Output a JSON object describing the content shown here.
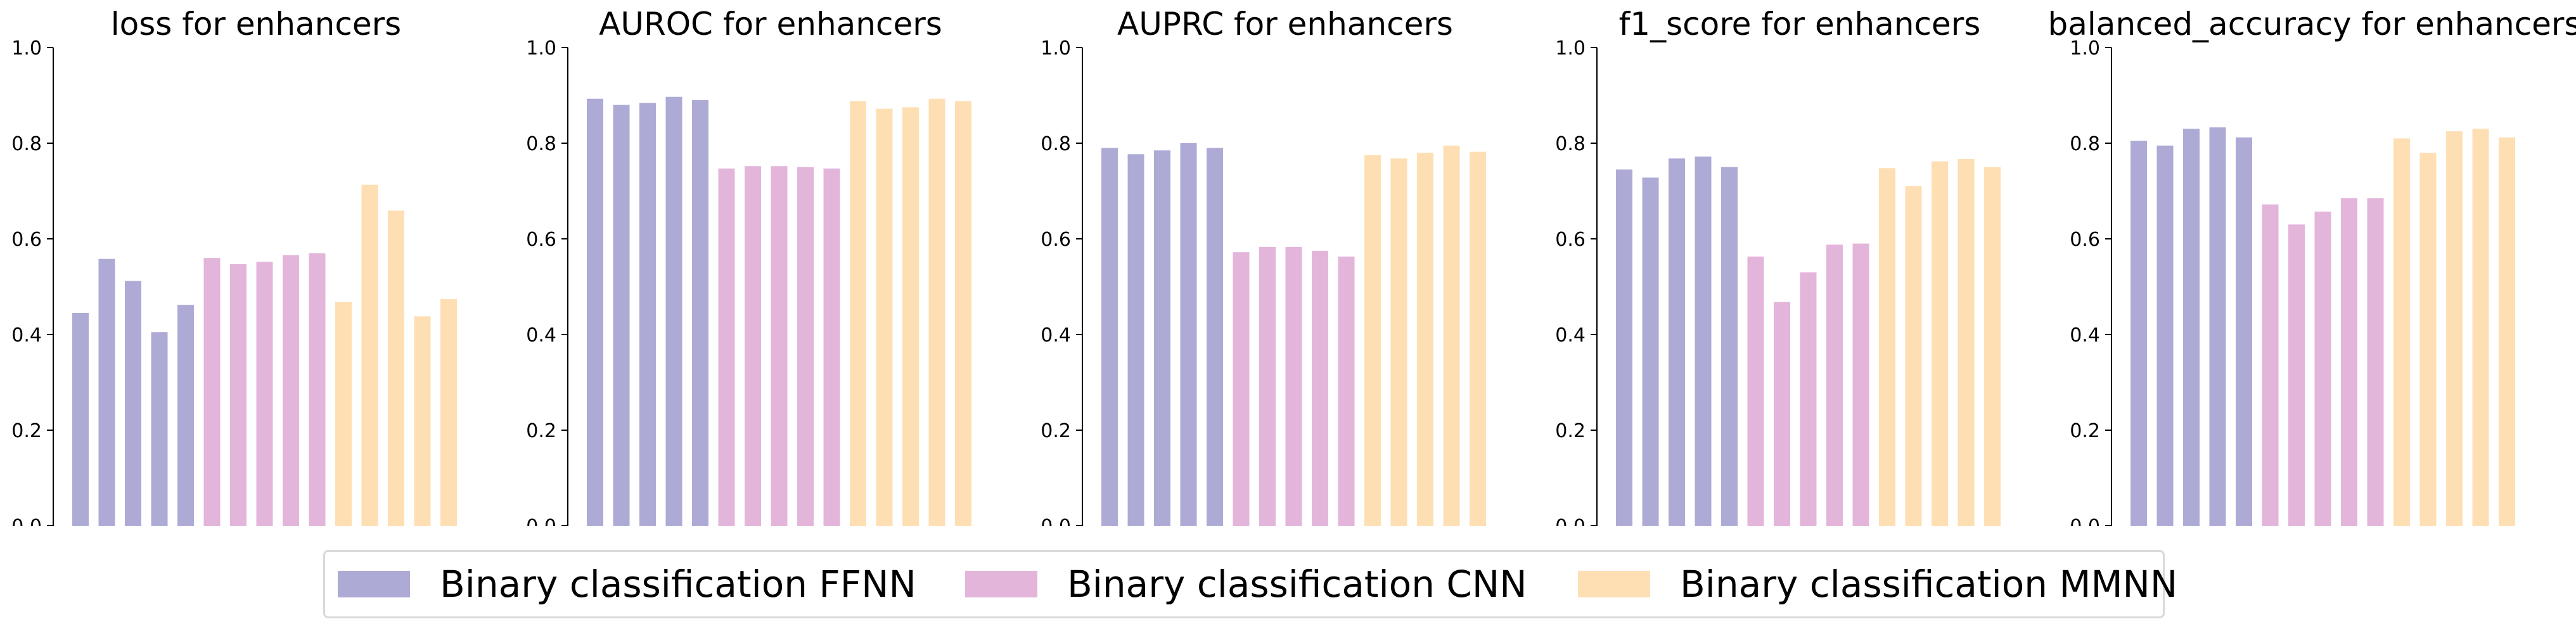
{
  "chart_data": [
    {
      "type": "bar",
      "title": "loss for enhancers",
      "ylim": [
        0,
        1
      ],
      "yticks": [
        "0.0",
        "0.2",
        "0.4",
        "0.6",
        "0.8",
        "1.0"
      ],
      "series": [
        {
          "name": "Binary classification FFNN",
          "values": [
            0.445,
            0.558,
            0.512,
            0.405,
            0.462
          ]
        },
        {
          "name": "Binary classification CNN",
          "values": [
            0.56,
            0.547,
            0.552,
            0.566,
            0.57
          ]
        },
        {
          "name": "Binary classification MMNN",
          "values": [
            0.468,
            0.713,
            0.659,
            0.438,
            0.474
          ]
        }
      ]
    },
    {
      "type": "bar",
      "title": "AUROC for enhancers",
      "ylim": [
        0,
        1
      ],
      "yticks": [
        "0.0",
        "0.2",
        "0.4",
        "0.6",
        "0.8",
        "1.0"
      ],
      "series": [
        {
          "name": "Binary classification FFNN",
          "values": [
            0.893,
            0.88,
            0.884,
            0.897,
            0.89
          ]
        },
        {
          "name": "Binary classification CNN",
          "values": [
            0.747,
            0.752,
            0.752,
            0.75,
            0.747
          ]
        },
        {
          "name": "Binary classification MMNN",
          "values": [
            0.888,
            0.872,
            0.875,
            0.893,
            0.888
          ]
        }
      ]
    },
    {
      "type": "bar",
      "title": "AUPRC for enhancers",
      "ylim": [
        0,
        1
      ],
      "yticks": [
        "0.0",
        "0.2",
        "0.4",
        "0.6",
        "0.8",
        "1.0"
      ],
      "series": [
        {
          "name": "Binary classification FFNN",
          "values": [
            0.79,
            0.777,
            0.785,
            0.8,
            0.79
          ]
        },
        {
          "name": "Binary classification CNN",
          "values": [
            0.572,
            0.583,
            0.583,
            0.575,
            0.563
          ]
        },
        {
          "name": "Binary classification MMNN",
          "values": [
            0.775,
            0.768,
            0.78,
            0.795,
            0.782
          ]
        }
      ]
    },
    {
      "type": "bar",
      "title": "f1_score for enhancers",
      "ylim": [
        0,
        1
      ],
      "yticks": [
        "0.0",
        "0.2",
        "0.4",
        "0.6",
        "0.8",
        "1.0"
      ],
      "series": [
        {
          "name": "Binary classification FFNN",
          "values": [
            0.745,
            0.728,
            0.768,
            0.772,
            0.75
          ]
        },
        {
          "name": "Binary classification CNN",
          "values": [
            0.563,
            0.468,
            0.53,
            0.588,
            0.59
          ]
        },
        {
          "name": "Binary classification MMNN",
          "values": [
            0.748,
            0.71,
            0.762,
            0.767,
            0.75
          ]
        }
      ]
    },
    {
      "type": "bar",
      "title": "balanced_accuracy for enhancers",
      "ylim": [
        0,
        1
      ],
      "yticks": [
        "0.0",
        "0.2",
        "0.4",
        "0.6",
        "0.8",
        "1.0"
      ],
      "series": [
        {
          "name": "Binary classification FFNN",
          "values": [
            0.805,
            0.795,
            0.83,
            0.833,
            0.812
          ]
        },
        {
          "name": "Binary classification CNN",
          "values": [
            0.672,
            0.63,
            0.657,
            0.685,
            0.685
          ]
        },
        {
          "name": "Binary classification MMNN",
          "values": [
            0.81,
            0.78,
            0.825,
            0.83,
            0.812
          ]
        }
      ]
    }
  ],
  "legend": {
    "items": [
      {
        "label": "Binary classification FFNN",
        "color": "#aeaad6"
      },
      {
        "label": "Binary classification CNN",
        "color": "#e3b5db"
      },
      {
        "label": "Binary classification MMNN",
        "color": "#fedfb4"
      }
    ]
  }
}
